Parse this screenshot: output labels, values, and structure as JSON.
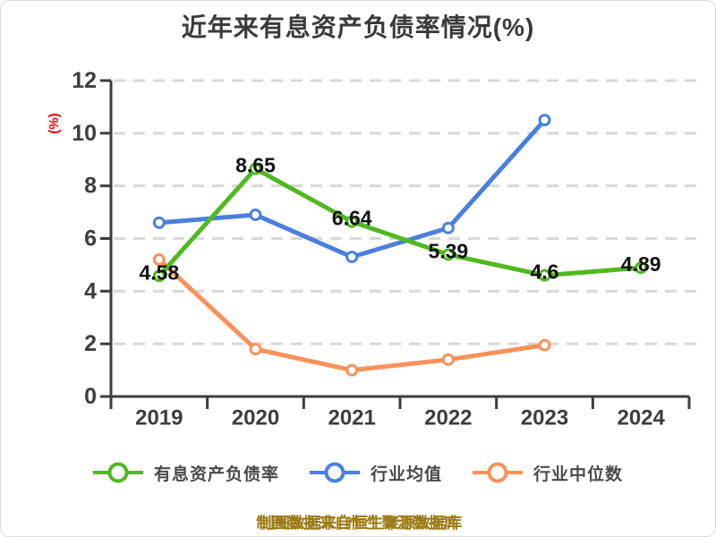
{
  "chart_data": {
    "type": "line",
    "title": "近年来有息资产负债率情况(%)",
    "ylabel": "(%)",
    "xlabel": "",
    "footer": "制图数据来自恒生聚源数据库",
    "categories": [
      "2019",
      "2020",
      "2021",
      "2022",
      "2023",
      "2024"
    ],
    "ylim": [
      0,
      12
    ],
    "yticks": [
      0,
      2,
      4,
      6,
      8,
      10,
      12
    ],
    "grid": "horizontal-dashed",
    "legend_position": "bottom",
    "series": [
      {
        "name": "有息资产负债率",
        "color": "#50b820",
        "values": [
          4.58,
          8.65,
          6.64,
          5.39,
          4.6,
          4.89
        ],
        "point_labels": [
          "4.58",
          "8.65",
          "6.64",
          "5.39",
          "4.6",
          "4.89"
        ]
      },
      {
        "name": "行业均值",
        "color": "#4a80dd",
        "values": [
          6.6,
          6.9,
          5.3,
          6.4,
          10.5,
          null
        ]
      },
      {
        "name": "行业中位数",
        "color": "#f9915a",
        "values": [
          5.2,
          1.8,
          1.0,
          1.4,
          1.95,
          null
        ]
      }
    ]
  },
  "colors": {
    "axis": "#3d3d3d",
    "tick_label": "#3d3d3d",
    "grid": "#d8d8d8",
    "data_label": "#111111"
  }
}
